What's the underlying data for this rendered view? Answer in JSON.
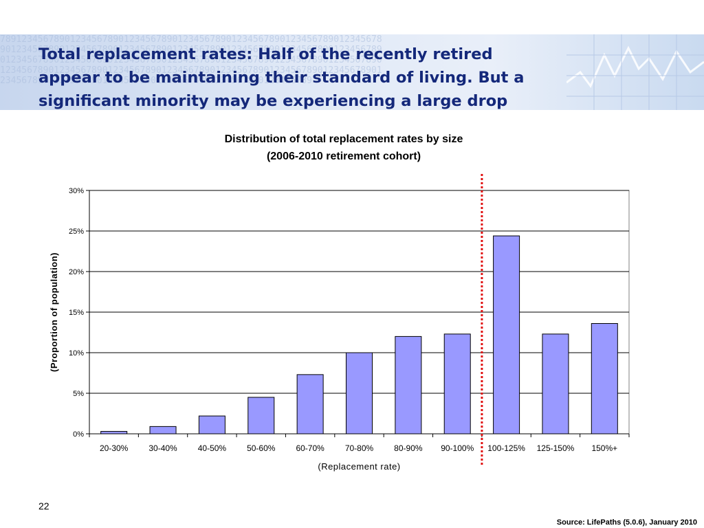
{
  "slide": {
    "title": "Total replacement rates:  Half of the recently retired\nappear to be maintaining their standard of living.  But a\nsignificant minority may be experiencing a  large drop",
    "page_number": "22",
    "source": "Source:  LifePaths  (5.0.6), January 2010"
  },
  "chart_data": {
    "type": "bar",
    "title": "Distribution of total replacement rates by size",
    "subtitle": "(2006-2010 retirement cohort)",
    "xlabel": "(Replacement rate)",
    "ylabel": "(Proportion of population)",
    "categories": [
      "20-30%",
      "30-40%",
      "40-50%",
      "50-60%",
      "60-70%",
      "70-80%",
      "80-90%",
      "90-100%",
      "100-125%",
      "125-150%",
      "150%+"
    ],
    "values": [
      0.3,
      0.9,
      2.2,
      4.5,
      7.3,
      10.0,
      12.0,
      12.3,
      24.4,
      12.3,
      13.6
    ],
    "ylim": [
      0,
      30
    ],
    "yticks": [
      0,
      5,
      10,
      15,
      20,
      25,
      30
    ],
    "ytick_labels": [
      "0%",
      "5%",
      "10%",
      "15%",
      "20%",
      "25%",
      "30%"
    ],
    "grid": true,
    "bar_color": "#9999ff",
    "reference_line": {
      "between": [
        "90-100%",
        "100-125%"
      ],
      "color": "#e01010",
      "style": "dotted"
    }
  }
}
